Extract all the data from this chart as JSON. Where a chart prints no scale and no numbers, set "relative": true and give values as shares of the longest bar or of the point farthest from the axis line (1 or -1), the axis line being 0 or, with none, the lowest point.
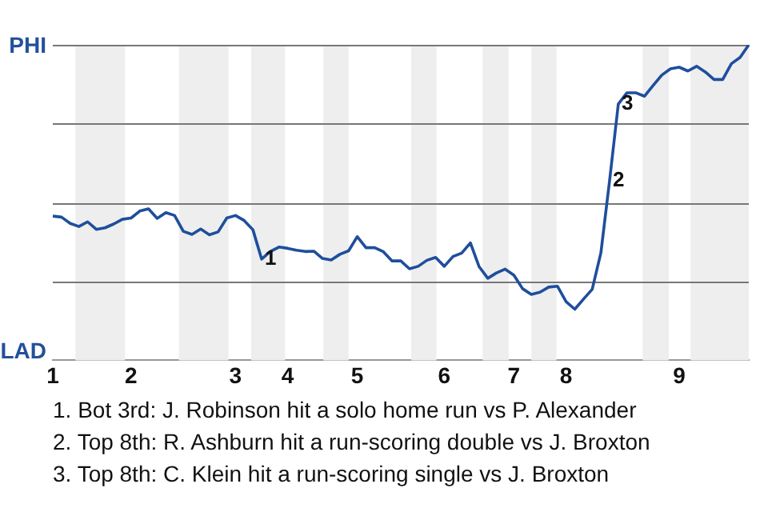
{
  "chart_data": {
    "type": "line",
    "relative": true,
    "categories": [
      "1",
      null,
      null,
      null,
      null,
      null,
      null,
      null,
      null,
      "2",
      null,
      null,
      null,
      null,
      null,
      null,
      null,
      null,
      null,
      null,
      null,
      "3",
      null,
      null,
      null,
      null,
      null,
      "4",
      null,
      null,
      null,
      null,
      null,
      null,
      null,
      "5",
      null,
      null,
      null,
      null,
      null,
      null,
      null,
      null,
      null,
      "6",
      null,
      null,
      null,
      null,
      null,
      null,
      null,
      "7",
      null,
      null,
      null,
      null,
      null,
      "8",
      null,
      null,
      null,
      null,
      null,
      null,
      null,
      null,
      null,
      null,
      null,
      null,
      "9",
      null,
      null,
      null,
      null,
      null,
      null,
      null,
      null
    ],
    "series": [
      {
        "color": "#1f4e9c",
        "values": [
          0.457,
          0.454,
          0.434,
          0.424,
          0.439,
          0.415,
          0.42,
          0.432,
          0.447,
          0.451,
          0.473,
          0.48,
          0.45,
          0.468,
          0.459,
          0.409,
          0.399,
          0.416,
          0.398,
          0.407,
          0.451,
          0.459,
          0.443,
          0.414,
          0.321,
          0.345,
          0.359,
          0.355,
          0.349,
          0.345,
          0.346,
          0.323,
          0.318,
          0.336,
          0.347,
          0.392,
          0.357,
          0.357,
          0.344,
          0.315,
          0.315,
          0.29,
          0.298,
          0.317,
          0.326,
          0.298,
          0.329,
          0.34,
          0.372,
          0.297,
          0.26,
          0.277,
          0.289,
          0.27,
          0.227,
          0.209,
          0.216,
          0.232,
          0.235,
          0.186,
          0.162,
          0.194,
          0.225,
          0.341,
          0.57,
          0.812,
          0.848,
          0.848,
          0.837,
          0.871,
          0.904,
          0.924,
          0.929,
          0.917,
          0.932,
          0.914,
          0.89,
          0.89,
          0.94,
          0.96,
          1
        ]
      }
    ],
    "grid": false,
    "legend": false,
    "marker": "none",
    "line_style": "solid",
    "ref_lines": [
      {
        "axis": "y",
        "value": 0.25,
        "color": "#777777"
      },
      {
        "axis": "y",
        "value": 0.5,
        "color": "#777777"
      },
      {
        "axis": "y",
        "value": 0.75,
        "color": "#777777"
      },
      {
        "axis": "y",
        "value": 1,
        "color": "#777777"
      }
    ],
    "annotations": [
      {
        "text": "1",
        "y": 0.321
      },
      {
        "text": "2",
        "y": 0.57
      },
      {
        "text": "3",
        "y": 0.812
      },
      "PHI",
      "LAD",
      "1. Bot 3rd: J. Robinson hit a solo home run vs P. Alexander",
      "2. Top 8th: R. Ashburn hit a run-scoring double vs J. Broxton",
      "3. Top 8th: C. Klein hit a run-scoring single vs J. Broxton"
    ]
  }
}
